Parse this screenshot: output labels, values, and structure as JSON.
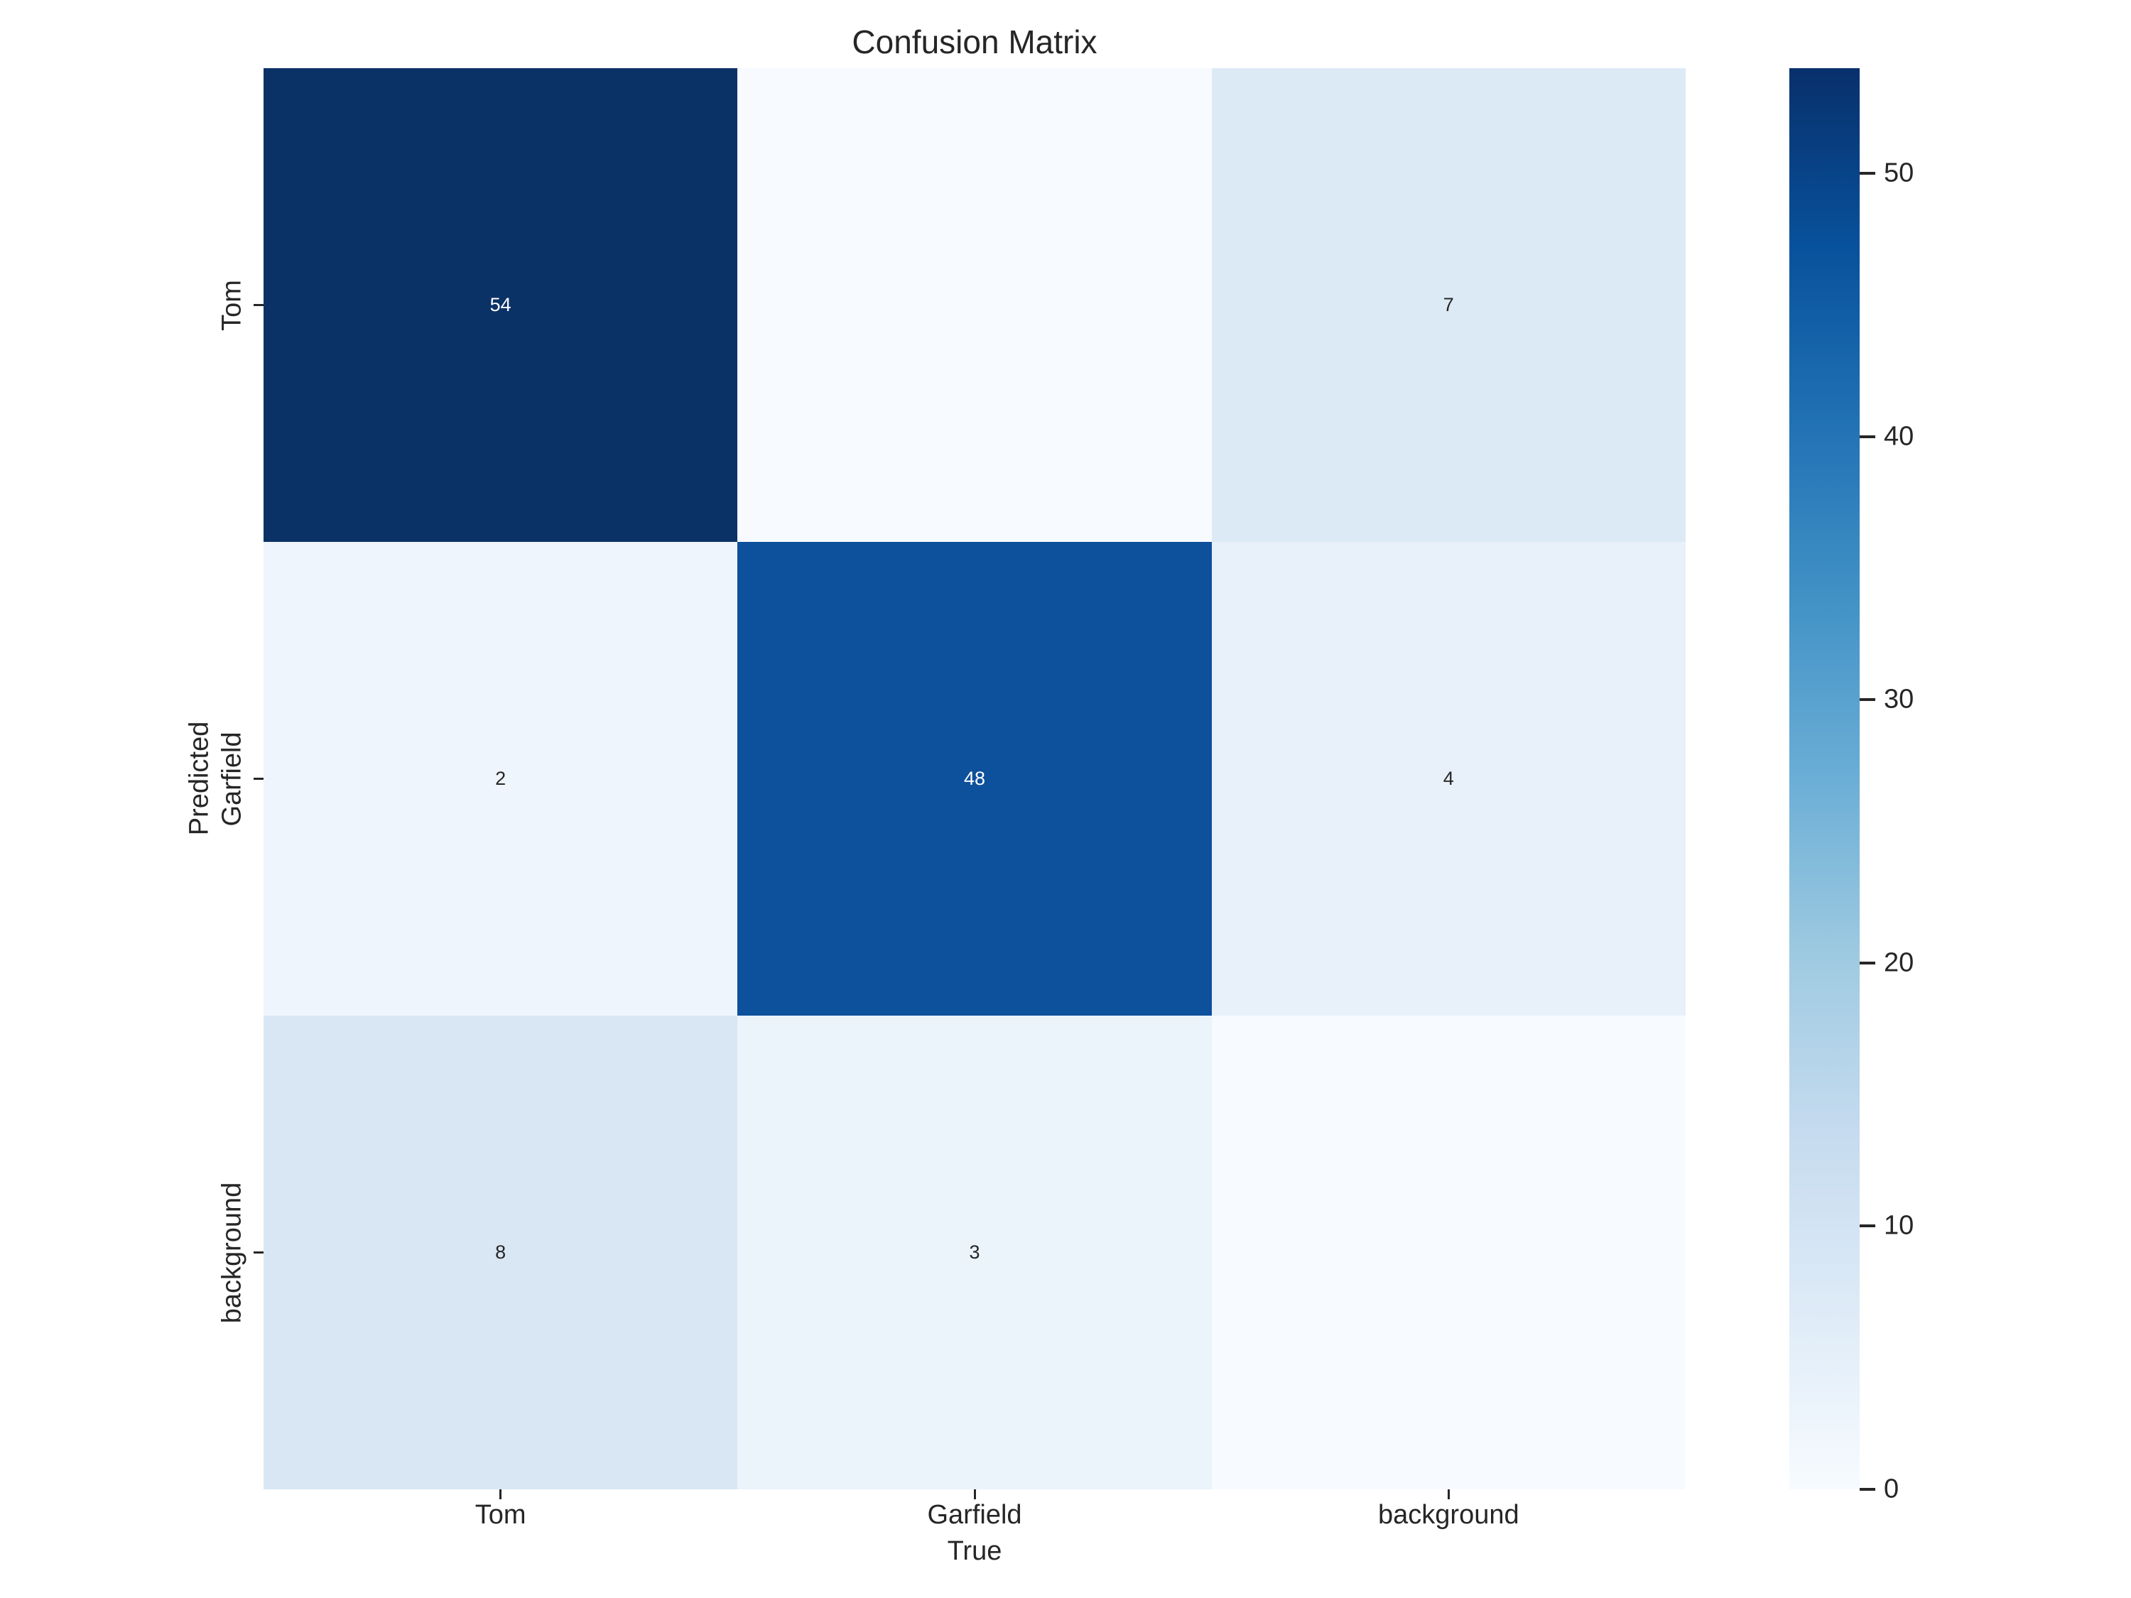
{
  "figure": {
    "background": "#ffffff"
  },
  "chart_data": {
    "type": "heatmap",
    "title": "Confusion Matrix",
    "xlabel": "True",
    "ylabel": "Predicted",
    "x_tick_labels": [
      "Tom",
      "Garfield",
      "background"
    ],
    "y_tick_labels": [
      "Tom",
      "Garfield",
      "background"
    ],
    "matrix": [
      [
        54,
        0,
        7
      ],
      [
        2,
        48,
        4
      ],
      [
        8,
        3,
        0
      ]
    ],
    "cells": [
      {
        "row": "Tom",
        "col": "Tom",
        "value": 54,
        "label": "54",
        "bg": "#0b3266",
        "fg": "#ffffff"
      },
      {
        "row": "Tom",
        "col": "Garfield",
        "value": 0,
        "label": "",
        "bg": "#f7fbff",
        "fg": "#262626"
      },
      {
        "row": "Tom",
        "col": "background",
        "value": 7,
        "label": "7",
        "bg": "#dceaf6",
        "fg": "#262626"
      },
      {
        "row": "Garfield",
        "col": "Tom",
        "value": 2,
        "label": "2",
        "bg": "#eff5fc",
        "fg": "#262626"
      },
      {
        "row": "Garfield",
        "col": "Garfield",
        "value": 48,
        "label": "48",
        "bg": "#0d509b",
        "fg": "#ffffff"
      },
      {
        "row": "Garfield",
        "col": "background",
        "value": 4,
        "label": "4",
        "bg": "#e8f1fa",
        "fg": "#262626"
      },
      {
        "row": "background",
        "col": "Tom",
        "value": 8,
        "label": "8",
        "bg": "#d9e7f5",
        "fg": "#262626"
      },
      {
        "row": "background",
        "col": "Garfield",
        "value": 3,
        "label": "3",
        "bg": "#ebf3fb",
        "fg": "#262626"
      },
      {
        "row": "background",
        "col": "background",
        "value": 0,
        "label": "",
        "bg": "#f7fbff",
        "fg": "#262626"
      }
    ],
    "colormap": "Blues",
    "grid": false,
    "legend_position": "colorbar-right",
    "colorbar": {
      "vmin": 0,
      "vmax": 54,
      "ticks": [
        "0",
        "10",
        "20",
        "30",
        "40",
        "50"
      ],
      "tick_values": [
        0,
        10,
        20,
        30,
        40,
        50
      ],
      "gradient_stops": [
        "#f7fbff",
        "#deebf7",
        "#c6dbef",
        "#9ecae1",
        "#6baed6",
        "#4292c6",
        "#2171b5",
        "#08519c",
        "#08306b"
      ]
    }
  },
  "colors": {
    "label_text": "#262626",
    "tick_mark": "#262626",
    "annotation_on_dark": "#ffffff",
    "annotation_on_light": "#262626",
    "cmap_min": "#f7fbff",
    "cmap_max": "#08306b"
  }
}
